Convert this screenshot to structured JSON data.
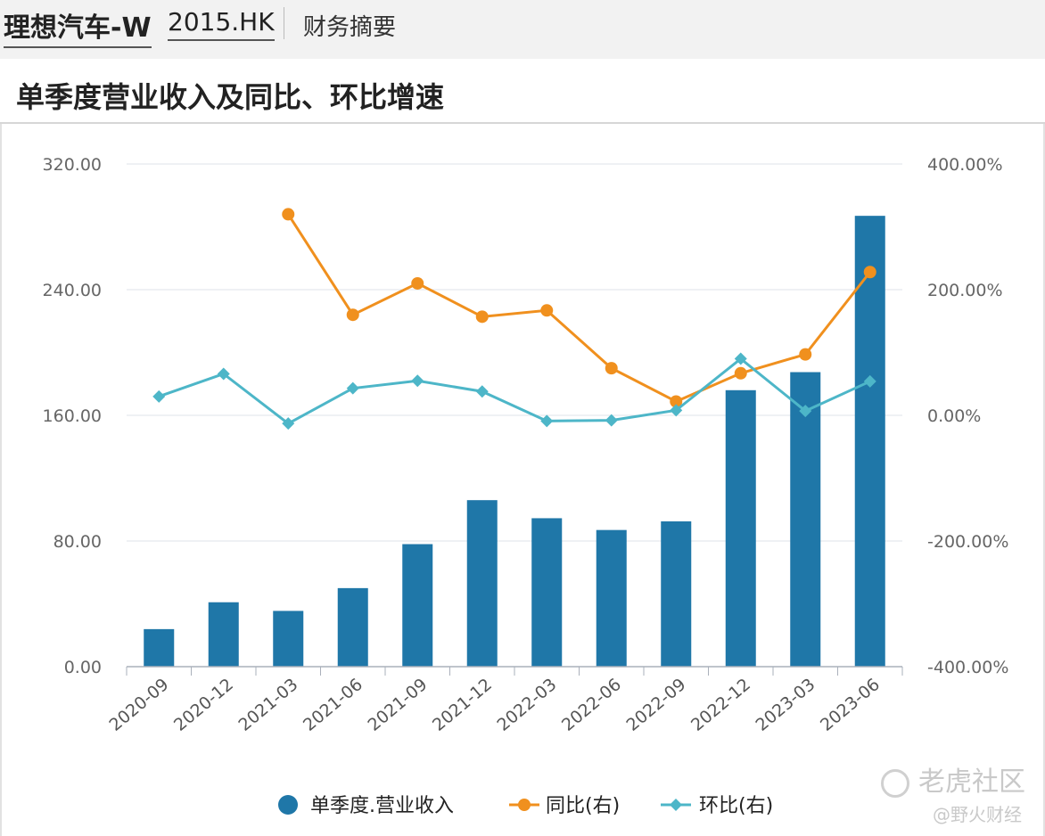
{
  "header": {
    "stock_name": "理想汽车-W",
    "stock_code": "2015.HK",
    "section": "财务摘要"
  },
  "chart_title": "单季度营业收入及同比、环比增速",
  "watermark": {
    "brand": "老虎社区",
    "author": "@野火财经"
  },
  "colors": {
    "bar": "#1f77a8",
    "yoy": "#f0901e",
    "qoq": "#4db6c8"
  },
  "chart_data": {
    "type": "bar",
    "categories": [
      "2020-09",
      "2020-12",
      "2021-03",
      "2021-06",
      "2021-09",
      "2021-12",
      "2022-03",
      "2022-06",
      "2022-09",
      "2022-12",
      "2023-03",
      "2023-06"
    ],
    "left_axis": {
      "ylim": [
        0,
        320
      ],
      "ticks": [
        "320.00",
        "240.00",
        "160.00",
        "80.00",
        "0.00"
      ]
    },
    "right_axis": {
      "ylim": [
        -400,
        400
      ],
      "ticks": [
        "400.00%",
        "200.00%",
        "0.00%",
        "-200.00%",
        "-400.00%"
      ]
    },
    "grid": true,
    "legend_position": "bottom",
    "series": [
      {
        "name": "单季度.营业收入",
        "type": "bar",
        "axis": "left",
        "values": [
          23.9,
          41.0,
          35.5,
          50.0,
          78.0,
          106.0,
          94.5,
          87.0,
          92.5,
          176.0,
          187.5,
          287.0
        ]
      },
      {
        "name": "同比(右)",
        "type": "line",
        "axis": "right",
        "marker": "circle",
        "values": [
          null,
          null,
          320,
          160,
          210,
          157,
          167,
          75,
          22,
          67,
          97,
          228
        ]
      },
      {
        "name": "环比(右)",
        "type": "line",
        "axis": "right",
        "marker": "diamond",
        "values": [
          30,
          66,
          -13,
          43,
          55,
          38,
          -9,
          -8,
          8,
          90,
          7,
          54
        ]
      }
    ]
  }
}
